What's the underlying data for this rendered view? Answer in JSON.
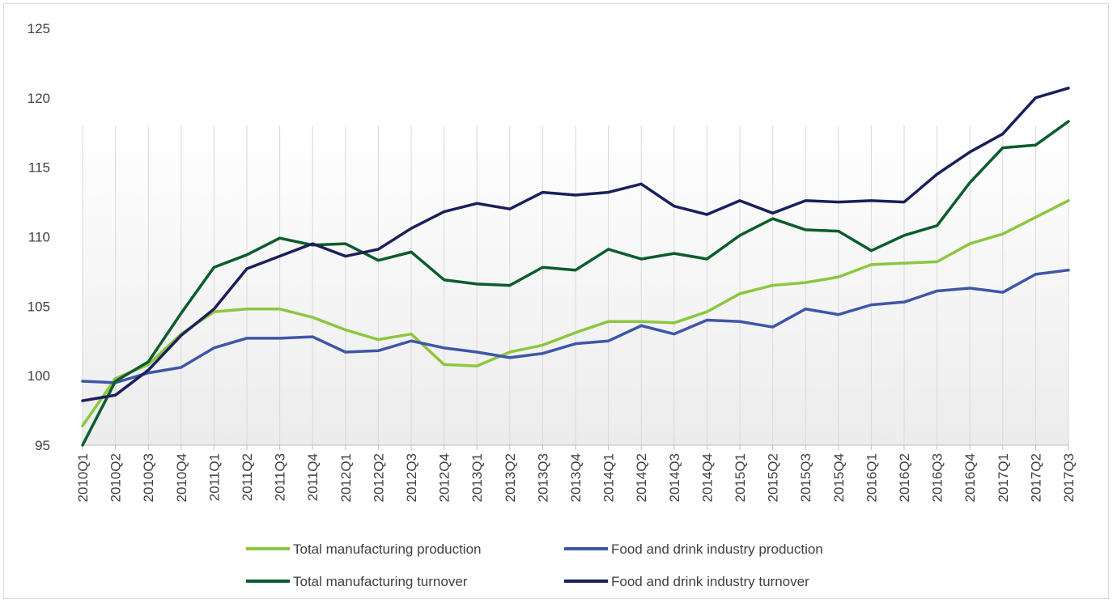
{
  "chart_data": {
    "type": "line",
    "title": "",
    "xlabel": "",
    "ylabel": "",
    "ylim": [
      95,
      125
    ],
    "yticks": [
      95,
      100,
      105,
      110,
      115,
      120,
      125
    ],
    "grid": "vertical",
    "legend_position": "bottom",
    "categories": [
      "2010Q1",
      "2010Q2",
      "2010Q3",
      "2010Q4",
      "2011Q1",
      "2011Q2",
      "2011Q3",
      "2011Q4",
      "2012Q1",
      "2012Q2",
      "2012Q3",
      "2012Q4",
      "2013Q1",
      "2013Q2",
      "2013Q3",
      "2013Q4",
      "2014Q1",
      "2014Q2",
      "2014Q3",
      "2014Q4",
      "2015Q1",
      "2015Q2",
      "2015Q3",
      "2015Q4",
      "2016Q1",
      "2016Q2",
      "2016Q3",
      "2016Q4",
      "2017Q1",
      "2017Q2",
      "2017Q3"
    ],
    "series": [
      {
        "name": "Total manufacturing production",
        "color": "#8dc63f",
        "values": [
          96.4,
          99.8,
          100.8,
          103.0,
          104.6,
          104.8,
          104.8,
          104.2,
          103.3,
          102.6,
          103.0,
          100.8,
          100.7,
          101.7,
          102.2,
          103.1,
          103.9,
          103.9,
          103.8,
          104.6,
          105.9,
          106.5,
          106.7,
          107.1,
          108.0,
          108.1,
          108.2,
          109.5,
          110.2,
          111.4,
          112.6
        ]
      },
      {
        "name": "Food and drink industry production",
        "color": "#3e56a8",
        "values": [
          99.6,
          99.5,
          100.2,
          100.6,
          102.0,
          102.7,
          102.7,
          102.8,
          101.7,
          101.8,
          102.5,
          102.0,
          101.7,
          101.3,
          101.6,
          102.3,
          102.5,
          103.6,
          103.0,
          104.0,
          103.9,
          103.5,
          104.8,
          104.4,
          105.1,
          105.3,
          106.1,
          106.3,
          106.0,
          107.3,
          107.6
        ]
      },
      {
        "name": "Total manufacturing turnover",
        "color": "#0b5c2c",
        "values": [
          95.0,
          99.6,
          101.0,
          104.5,
          107.8,
          108.7,
          109.9,
          109.4,
          109.5,
          108.3,
          108.9,
          106.9,
          106.6,
          106.5,
          107.8,
          107.6,
          109.1,
          108.4,
          108.8,
          108.4,
          110.1,
          111.3,
          110.5,
          110.4,
          109.0,
          110.1,
          110.8,
          113.9,
          116.4,
          116.6,
          118.3
        ]
      },
      {
        "name": "Food and drink industry turnover",
        "color": "#1a1f5c",
        "values": [
          98.2,
          98.6,
          100.4,
          102.9,
          104.8,
          107.7,
          108.6,
          109.5,
          108.6,
          109.1,
          110.6,
          111.8,
          112.4,
          112.0,
          113.2,
          113.0,
          113.2,
          113.8,
          112.2,
          111.6,
          112.6,
          111.7,
          112.6,
          112.5,
          112.6,
          112.5,
          114.5,
          116.1,
          117.4,
          120.0,
          120.7
        ]
      }
    ]
  }
}
